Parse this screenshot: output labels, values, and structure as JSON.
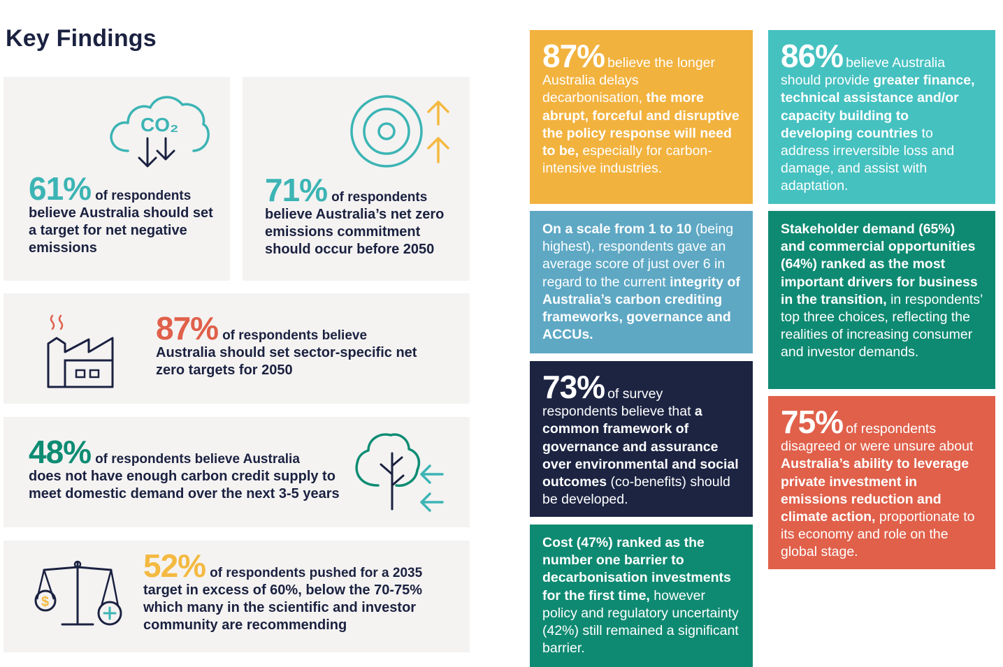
{
  "page_title": "Key Findings",
  "colors": {
    "navy": "#1b2140",
    "teal": "#3cb4b4",
    "coral": "#e0604a",
    "yellow": "#f4b941",
    "green": "#0d8c73",
    "card_bg": "#f4f3f2",
    "tile_yellow": "#f2b23e",
    "tile_turquoise": "#45c1c0",
    "tile_blue": "#5ea8c4",
    "tile_green": "#0f8a72",
    "tile_navy": "#1c2442",
    "tile_coral": "#e0604a"
  },
  "icons": {
    "card1": "co2-cloud-icon",
    "card2": "target-arrows-icon",
    "card3": "factory-icon",
    "card4": "tree-arrows-icon",
    "card5": "scales-icon"
  },
  "cards": {
    "c1": {
      "pct": "61%",
      "lead": "of respondents",
      "rest": "believe Australia should set a target for net negative emissions",
      "icon_text": "CO₂"
    },
    "c2": {
      "pct": "71%",
      "lead": "of respondents",
      "rest": "believe Australia’s net zero emissions commitment should occur before 2050"
    },
    "c3": {
      "pct": "87%",
      "lead": "of respondents believe",
      "rest": "Australia should set sector-specific net zero targets for 2050"
    },
    "c4": {
      "pct": "48%",
      "lead": "of respondents believe Australia",
      "rest": "does not have enough carbon credit supply to meet domestic demand over the next 3-5 years"
    },
    "c5": {
      "pct": "52%",
      "lead": "of respondents pushed for a 2035",
      "rest": "target in excess of 60%, below the 70-75% which many in the scientific and investor community are recommending"
    }
  },
  "tiles": {
    "t1": {
      "pct": "87%",
      "a": "believe the longer Australia delays decarbonisation,",
      "b": "the more abrupt, forceful and disruptive the policy response will need to be,",
      "c": "especially for carbon-intensive industries."
    },
    "t2": {
      "pct": "86%",
      "a": "believe Australia should provide",
      "b": "greater finance, technical assistance and/or capacity building to developing countries",
      "c": "to address irreversible loss and damage, and assist with adaptation."
    },
    "t3": {
      "a": "On a scale from 1 to 10",
      "b": "(being highest), respondents gave an average score of just over 6 in regard to the current",
      "c": "integrity of Australia’s carbon crediting frameworks, governance and ACCUs."
    },
    "t4": {
      "a": "Stakeholder demand (65%) and commercial opportunities (64%) ranked as the most important drivers for business in the transition,",
      "b": "in respondents’ top three choices, reflecting the realities of increasing consumer and investor demands."
    },
    "t5": {
      "pct": "73%",
      "a": "of survey respondents believe that",
      "b": "a common framework of governance and assurance over environmental and social outcomes",
      "c": "(co-benefits) should be developed."
    },
    "t6": {
      "pct": "75%",
      "a": "of respondents disagreed or were unsure about",
      "b": "Australia’s ability to leverage private investment in emissions reduction and climate action,",
      "c": "proportionate to its economy and role on the global stage."
    },
    "t7": {
      "a": "Cost (47%) ranked as the number one barrier to decarbonisation investments for the first time,",
      "b": "however policy and regulatory uncertainty (42%) still remained a significant barrier."
    }
  }
}
